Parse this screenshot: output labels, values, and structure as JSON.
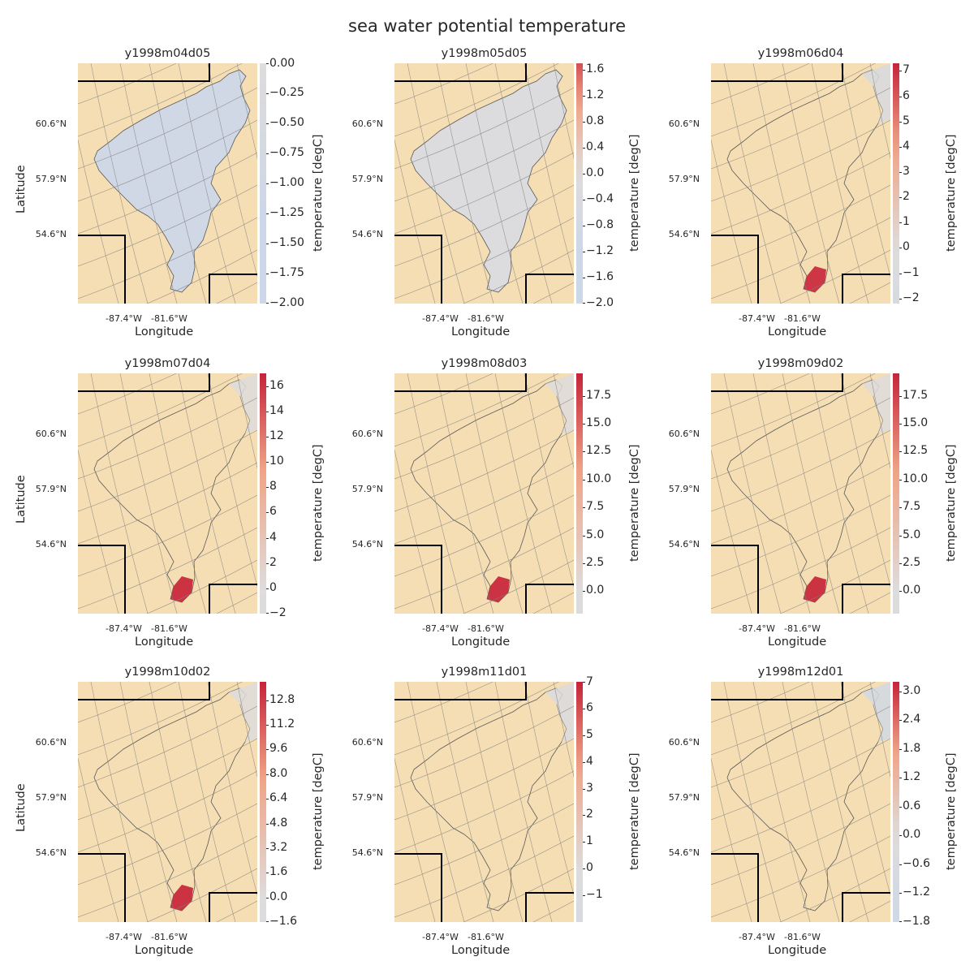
{
  "figure": {
    "title": "sea water potential temperature",
    "colors": {
      "land": "#f5deb3",
      "cold": "#ccd7e7",
      "neutral": "#dedcdc",
      "warm": "#f0a486",
      "hot": "#c6233a",
      "border": "#000000",
      "grid": "#808080"
    }
  },
  "chart_data": [
    {
      "type": "heatmap",
      "title": "y1998m04d05",
      "xlabel": "Longitude",
      "ylabel": "Latitude",
      "x_ticks": [
        "-87.4°W",
        "-81.6°W"
      ],
      "y_ticks": [
        "60.6°N",
        "57.9°N",
        "54.6°N"
      ],
      "colorbar": {
        "label": "temperature [degC]",
        "range": [
          -2.0,
          0.0
        ],
        "ticks": [
          "0.00",
          "−0.25",
          "−0.50",
          "−0.75",
          "−1.00",
          "−1.25",
          "−1.50",
          "−1.75",
          "−2.00"
        ]
      }
    },
    {
      "type": "heatmap",
      "title": "y1998m05d05",
      "xlabel": "Longitude",
      "ylabel": "",
      "x_ticks": [
        "-87.4°W",
        "-81.6°W"
      ],
      "y_ticks": [
        "60.6°N",
        "57.9°N",
        "54.6°N"
      ],
      "colorbar": {
        "label": "temperature [degC]",
        "range": [
          -2.0,
          1.7
        ],
        "ticks": [
          "1.6",
          "1.2",
          "0.8",
          "0.4",
          "0.0",
          "−0.4",
          "−0.8",
          "−1.2",
          "−1.6",
          "−2.0"
        ]
      }
    },
    {
      "type": "heatmap",
      "title": "y1998m06d04",
      "xlabel": "Longitude",
      "ylabel": "",
      "x_ticks": [
        "-87.4°W",
        "-81.6°W"
      ],
      "y_ticks": [
        "60.6°N",
        "57.9°N",
        "54.6°N"
      ],
      "colorbar": {
        "label": "temperature [degC]",
        "range": [
          -2.2,
          7.3
        ],
        "ticks": [
          "7",
          "6",
          "5",
          "4",
          "3",
          "2",
          "1",
          "0",
          "−1",
          "−2"
        ]
      }
    },
    {
      "type": "heatmap",
      "title": "y1998m07d04",
      "xlabel": "Longitude",
      "ylabel": "Latitude",
      "x_ticks": [
        "-87.4°W",
        "-81.6°W"
      ],
      "y_ticks": [
        "60.6°N",
        "57.9°N",
        "54.6°N"
      ],
      "colorbar": {
        "label": "temperature [degC]",
        "range": [
          -2.0,
          17.0
        ],
        "ticks": [
          "16",
          "14",
          "12",
          "10",
          "8",
          "6",
          "4",
          "2",
          "0",
          "−2"
        ]
      }
    },
    {
      "type": "heatmap",
      "title": "y1998m08d03",
      "xlabel": "Longitude",
      "ylabel": "",
      "x_ticks": [
        "-87.4°W",
        "-81.6°W"
      ],
      "y_ticks": [
        "60.6°N",
        "57.9°N",
        "54.6°N"
      ],
      "colorbar": {
        "label": "temperature [degC]",
        "range": [
          -2.0,
          19.5
        ],
        "ticks": [
          "17.5",
          "15.0",
          "12.5",
          "10.0",
          "7.5",
          "5.0",
          "2.5",
          "0.0"
        ]
      }
    },
    {
      "type": "heatmap",
      "title": "y1998m09d02",
      "xlabel": "Longitude",
      "ylabel": "",
      "x_ticks": [
        "-87.4°W",
        "-81.6°W"
      ],
      "y_ticks": [
        "60.6°N",
        "57.9°N",
        "54.6°N"
      ],
      "colorbar": {
        "label": "temperature [degC]",
        "range": [
          -2.0,
          19.5
        ],
        "ticks": [
          "17.5",
          "15.0",
          "12.5",
          "10.0",
          "7.5",
          "5.0",
          "2.5",
          "0.0"
        ]
      }
    },
    {
      "type": "heatmap",
      "title": "y1998m10d02",
      "xlabel": "Longitude",
      "ylabel": "Latitude",
      "x_ticks": [
        "-87.4°W",
        "-81.6°W"
      ],
      "y_ticks": [
        "60.6°N",
        "57.9°N",
        "54.6°N"
      ],
      "colorbar": {
        "label": "temperature [degC]",
        "range": [
          -1.6,
          14.0
        ],
        "ticks": [
          "12.8",
          "11.2",
          "9.6",
          "8.0",
          "6.4",
          "4.8",
          "3.2",
          "1.6",
          "0.0",
          "−1.6"
        ]
      }
    },
    {
      "type": "heatmap",
      "title": "y1998m11d01",
      "xlabel": "Longitude",
      "ylabel": "",
      "x_ticks": [
        "-87.4°W",
        "-81.6°W"
      ],
      "y_ticks": [
        "60.6°N",
        "57.9°N",
        "54.6°N"
      ],
      "colorbar": {
        "label": "temperature [degC]",
        "range": [
          -2.0,
          7.0
        ],
        "ticks": [
          "7",
          "6",
          "5",
          "4",
          "3",
          "2",
          "1",
          "0",
          "−1"
        ]
      }
    },
    {
      "type": "heatmap",
      "title": "y1998m12d01",
      "xlabel": "Longitude",
      "ylabel": "",
      "x_ticks": [
        "-87.4°W",
        "-81.6°W"
      ],
      "y_ticks": [
        "60.6°N",
        "57.9°N",
        "54.6°N"
      ],
      "colorbar": {
        "label": "temperature [degC]",
        "range": [
          -1.8,
          3.2
        ],
        "ticks": [
          "3.0",
          "2.4",
          "1.8",
          "1.2",
          "0.6",
          "0.0",
          "−0.6",
          "−1.2",
          "−1.8"
        ]
      }
    }
  ]
}
